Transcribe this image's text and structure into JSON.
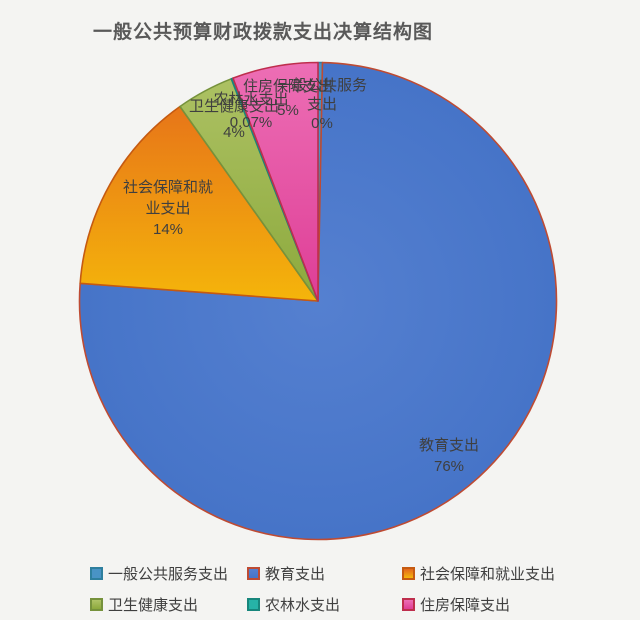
{
  "title": "一般公共预算财政拨款支出决算结构图",
  "colors": {
    "background": "#F4F4F2",
    "title_text": "#595959",
    "label_text": "#3F3F3F"
  },
  "chart_data": {
    "type": "pie",
    "title": "一般公共预算财政拨款支出决算结构图",
    "legend_position": "bottom",
    "start_angle_deg": 0,
    "direction": "clockwise",
    "categories": [
      "一般公共服务支出",
      "教育支出",
      "社会保障和就业支出",
      "卫生健康支出",
      "农林水支出",
      "住房保障支出"
    ],
    "values_percent": [
      0,
      76,
      14,
      4,
      0.07,
      5
    ],
    "percent_labels": [
      "0%",
      "76%",
      "14%",
      "4%",
      "0.07%",
      "5%"
    ],
    "slices": [
      {
        "label": "一般公共服务支出",
        "percent": "0%",
        "value": 0,
        "label_lines": [
          "一般公共服务",
          "支出",
          "0%"
        ],
        "fill": "#4993C5",
        "fill2": "#4993C5",
        "border": "#2E7F9E",
        "gradient": "flat"
      },
      {
        "label": "教育支出",
        "percent": "76%",
        "value": 76,
        "label_lines": [
          "教育支出",
          "76%"
        ],
        "fill": "#5580D0",
        "fill2": "#4674C8",
        "border": "#BE4B33",
        "gradient": "radial"
      },
      {
        "label": "社会保障和就业支出",
        "percent": "14%",
        "value": 14,
        "label_lines": [
          "社会保障和就",
          "业支出",
          "14%"
        ],
        "fill": "#E4661C",
        "fill2": "#F5B60A",
        "border": "#C55A11",
        "gradient": "linear"
      },
      {
        "label": "卫生健康支出",
        "percent": "4%",
        "value": 4,
        "label_lines": [
          "卫生健康支出",
          "4%"
        ],
        "fill": "#AFC366",
        "fill2": "#8CA93C",
        "border": "#76923C",
        "gradient": "linear"
      },
      {
        "label": "农林水支出",
        "percent": "0.07%",
        "value": 0.07,
        "label_lines": [
          "农林水支出",
          "0.07%"
        ],
        "fill": "#26B3A7",
        "fill2": "#26B3A7",
        "border": "#17867C",
        "gradient": "flat"
      },
      {
        "label": "住房保障支出",
        "percent": "5%",
        "value": 5,
        "label_lines": [
          "住房保障支出",
          "5%"
        ],
        "fill": "#ED6FB5",
        "fill2": "#DE3D96",
        "border": "#BE2E4D",
        "gradient": "linear"
      }
    ]
  },
  "legend": {
    "items": [
      "一般公共服务支出",
      "教育支出",
      "社会保障和就业支出",
      "卫生健康支出",
      "农林水支出",
      "住房保障支出"
    ]
  }
}
